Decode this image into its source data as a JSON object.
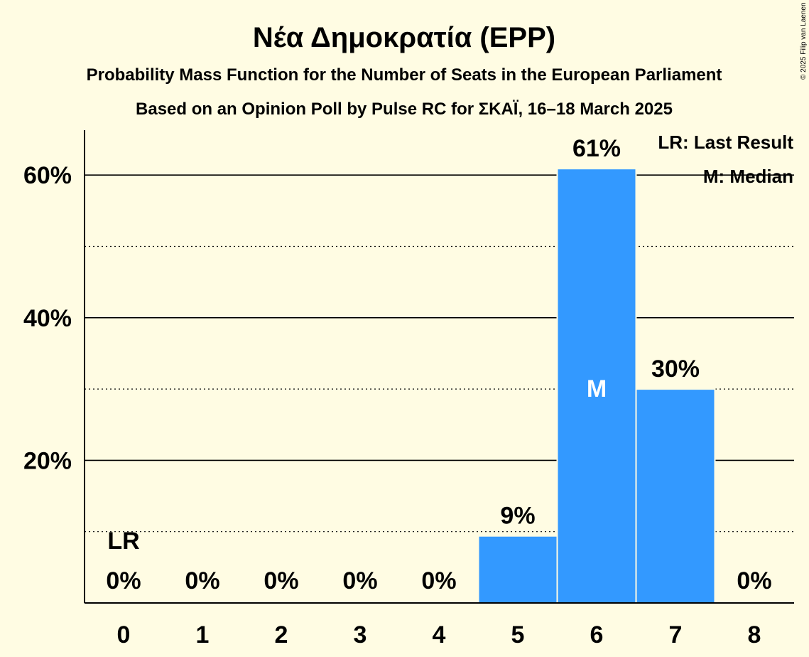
{
  "chart_data": {
    "type": "bar",
    "title": "Νέα Δημοκρατία (EPP)",
    "subtitle": "Probability Mass Function for the Number of Seats in the European Parliament",
    "subtitle2": "Based on an Opinion Poll by Pulse RC for ΣΚΑΪ, 16–18 March 2025",
    "categories": [
      "0",
      "1",
      "2",
      "3",
      "4",
      "5",
      "6",
      "7",
      "8"
    ],
    "values": [
      0,
      0,
      0,
      0,
      0,
      9.3,
      60.8,
      29.9,
      0
    ],
    "value_labels": [
      "0%",
      "0%",
      "0%",
      "0%",
      "0%",
      "9%",
      "61%",
      "30%",
      "0%"
    ],
    "yticks": [
      20,
      40,
      60
    ],
    "ytick_labels": [
      "20%",
      "40%",
      "60%"
    ],
    "ylim": [
      0,
      66
    ],
    "grid": true,
    "last_result_index": 0,
    "last_result_marker": "LR",
    "median_index": 6,
    "median_marker": "M",
    "bar_color": "#3399ff",
    "legend": {
      "placement": "top-right",
      "items": [
        "LR: Last Result",
        "M: Median"
      ]
    },
    "copyright": "© 2025 Filip van Laenen"
  }
}
